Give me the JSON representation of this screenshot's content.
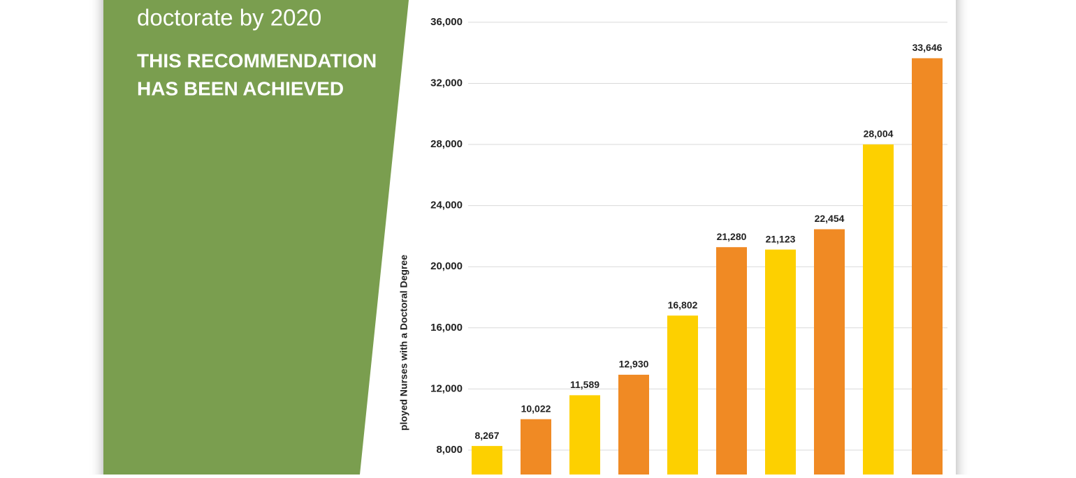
{
  "panel": {
    "text": "doctorate by 2020",
    "headline": [
      "THIS RECOMMENDATION",
      "HAS BEEN ACHIEVED"
    ]
  },
  "chart_data": {
    "type": "bar",
    "y_label": "ployed Nurses with a Doctoral Degree",
    "categories": [
      null,
      null,
      null,
      null,
      null,
      null,
      null,
      null,
      null,
      null
    ],
    "values": [
      8267,
      10022,
      11589,
      12930,
      16802,
      21280,
      21123,
      22454,
      28004,
      33646
    ],
    "value_labels": [
      "8,267",
      "10,022",
      "11,589",
      "12,930",
      "16,802",
      "21,280",
      "21,123",
      "22,454",
      "28,004",
      "33,646"
    ],
    "colors": [
      "#fdd000",
      "#f08a24",
      "#fdd000",
      "#f08a24",
      "#fdd000",
      "#f08a24",
      "#fdd000",
      "#f08a24",
      "#fdd000",
      "#f08a24"
    ],
    "ylim": [
      6400,
      37000
    ],
    "yticks": [
      {
        "value": 8000,
        "label": "8,000"
      },
      {
        "value": 12000,
        "label": "12,000"
      },
      {
        "value": 16000,
        "label": "16,000"
      },
      {
        "value": 20000,
        "label": "20,000"
      },
      {
        "value": 24000,
        "label": "24,000"
      },
      {
        "value": 28000,
        "label": "28,000"
      },
      {
        "value": 32000,
        "label": "32,000"
      },
      {
        "value": 36000,
        "label": "36,000"
      }
    ],
    "grid": true
  }
}
